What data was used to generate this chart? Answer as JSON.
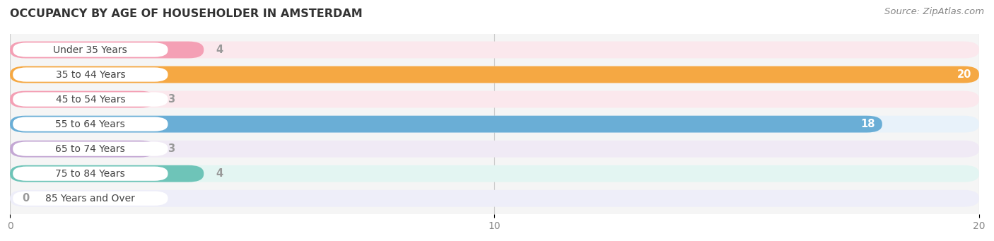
{
  "title": "OCCUPANCY BY AGE OF HOUSEHOLDER IN AMSTERDAM",
  "source": "Source: ZipAtlas.com",
  "categories": [
    "Under 35 Years",
    "35 to 44 Years",
    "45 to 54 Years",
    "55 to 64 Years",
    "65 to 74 Years",
    "75 to 84 Years",
    "85 Years and Over"
  ],
  "values": [
    4,
    20,
    3,
    18,
    3,
    4,
    0
  ],
  "bar_colors": [
    "#f4a0b5",
    "#f5a843",
    "#f4a0b5",
    "#6aaed6",
    "#c4a8d4",
    "#6ec4b8",
    "#b0b8e8"
  ],
  "bg_colors": [
    "#fbe8ed",
    "#fef2e0",
    "#fbe8ed",
    "#e8f2fa",
    "#f0eaf5",
    "#e3f5f2",
    "#eeeef9"
  ],
  "xlim": [
    0,
    20
  ],
  "xticks": [
    0,
    10,
    20
  ],
  "bar_height": 0.68,
  "label_color_inside": "#ffffff",
  "label_color_outside": "#999999",
  "title_fontsize": 11.5,
  "tick_fontsize": 10,
  "source_fontsize": 9.5,
  "cat_fontsize": 10,
  "label_fontsize": 10.5,
  "fig_bg": "#ffffff",
  "ax_bg": "#f5f5f5"
}
